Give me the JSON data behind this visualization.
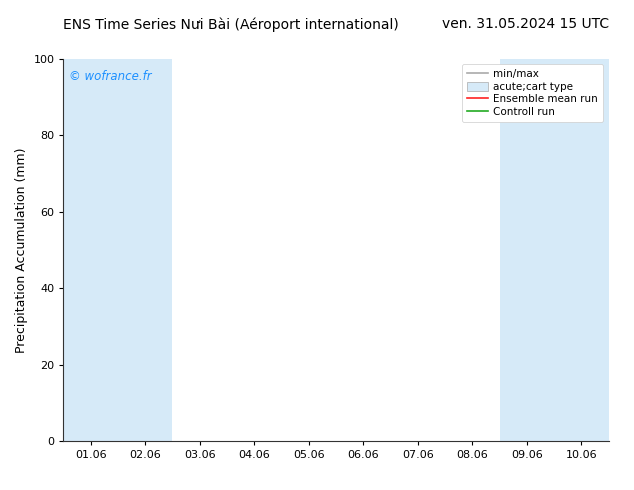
{
  "title_left": "ENS Time Series Nưi Bài (Aéroport international)",
  "title_right": "ven. 31.05.2024 15 UTC",
  "ylabel": "Precipitation Accumulation (mm)",
  "ylim": [
    0,
    100
  ],
  "yticks": [
    0,
    20,
    40,
    60,
    80,
    100
  ],
  "x_labels": [
    "01.06",
    "02.06",
    "03.06",
    "04.06",
    "05.06",
    "06.06",
    "07.06",
    "08.06",
    "09.06",
    "10.06"
  ],
  "x_positions": [
    0,
    1,
    2,
    3,
    4,
    5,
    6,
    7,
    8,
    9
  ],
  "xlim": [
    -0.5,
    9.5
  ],
  "shade_bands": [
    {
      "x_start": -0.5,
      "x_end": 0.5,
      "color": "#d6eaf8",
      "alpha": 1.0
    },
    {
      "x_start": 0.5,
      "x_end": 1.5,
      "color": "#d6eaf8",
      "alpha": 1.0
    },
    {
      "x_start": 7.5,
      "x_end": 8.5,
      "color": "#d6eaf8",
      "alpha": 1.0
    },
    {
      "x_start": 8.5,
      "x_end": 9.5,
      "color": "#d6eaf8",
      "alpha": 1.0
    }
  ],
  "watermark_text": "© wofrance.fr",
  "watermark_color": "#1e90ff",
  "bg_color": "#ffffff",
  "legend_items": [
    {
      "label": "min/max",
      "color": "#aaaaaa",
      "style": "errorbar"
    },
    {
      "label": "acute;cart type",
      "color": "#cccccc",
      "style": "fill"
    },
    {
      "label": "Ensemble mean run",
      "color": "#ff0000",
      "style": "line"
    },
    {
      "label": "Controll run",
      "color": "#008000",
      "style": "line"
    }
  ],
  "title_fontsize": 10,
  "label_fontsize": 9,
  "tick_fontsize": 8
}
